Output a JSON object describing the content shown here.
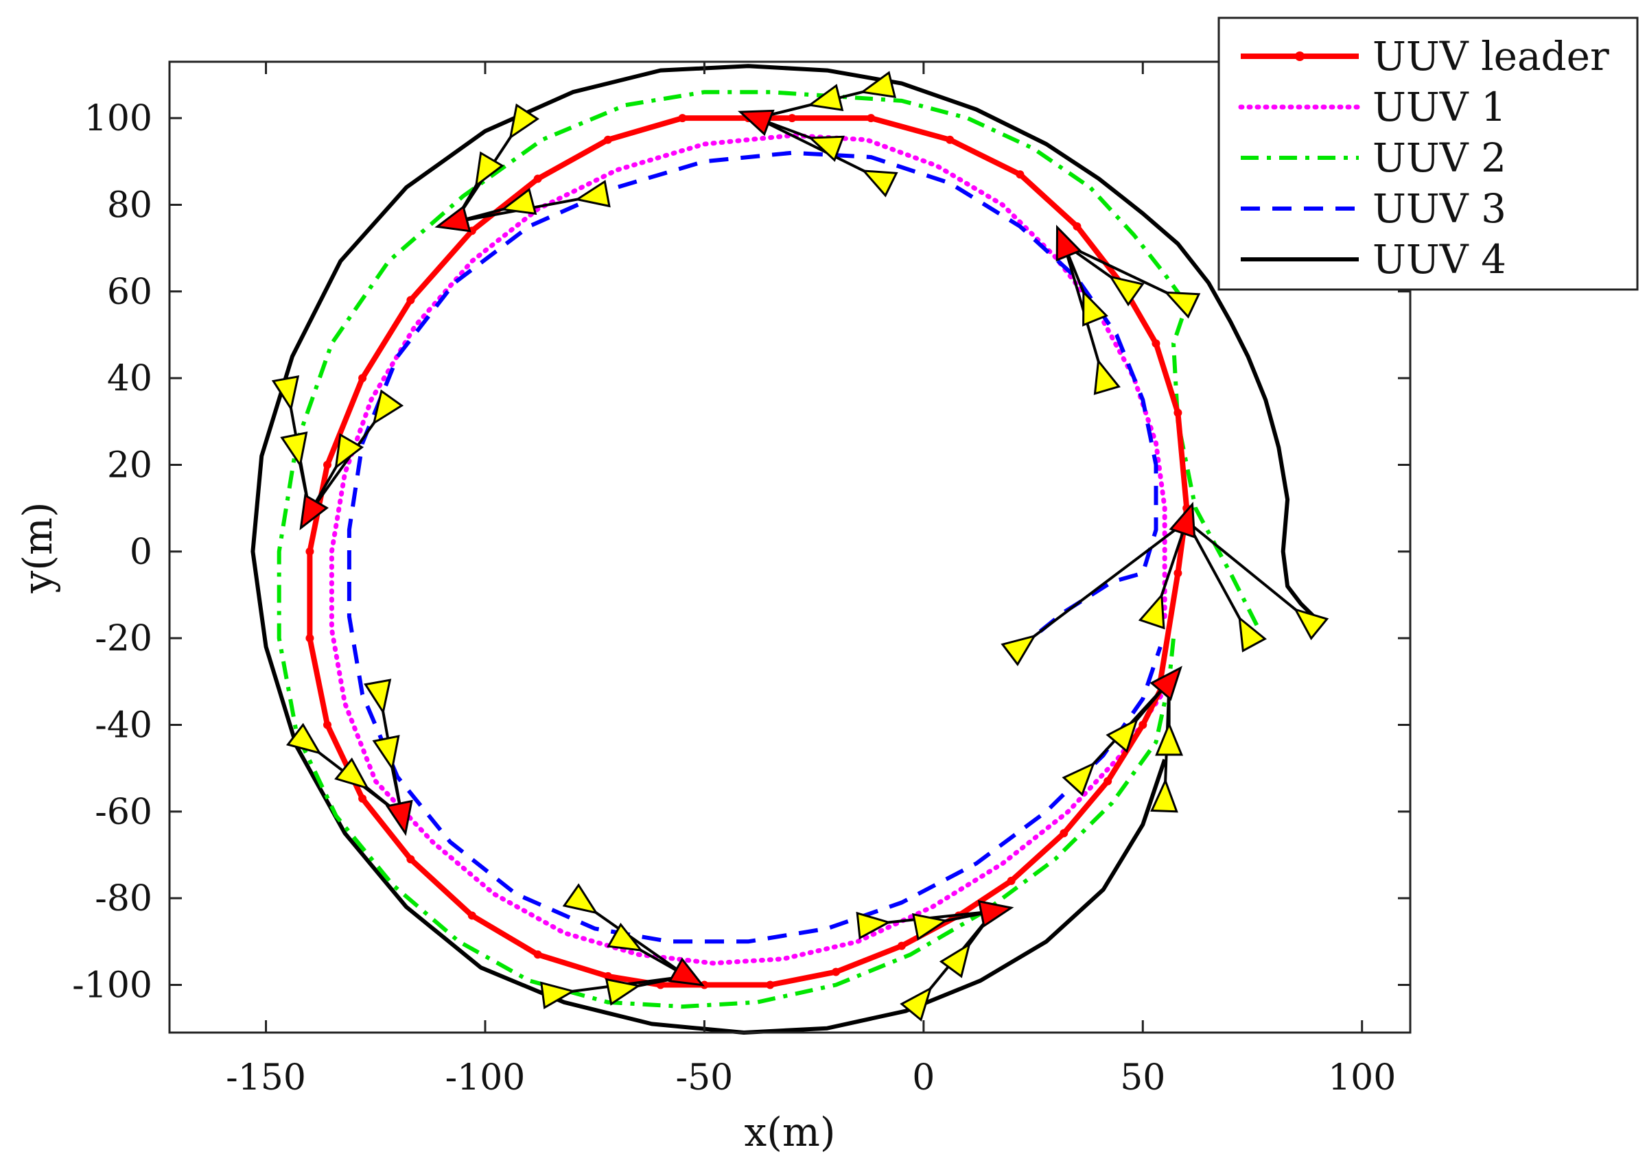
{
  "chart_data": {
    "type": "line",
    "title": "",
    "xlabel": "x(m)",
    "ylabel": "y(m)",
    "xlim": [
      -172,
      111
    ],
    "ylim": [
      -111,
      113
    ],
    "x_ticks": [
      -150,
      -100,
      -50,
      0,
      50,
      100
    ],
    "y_ticks": [
      -100,
      -80,
      -60,
      -40,
      -20,
      0,
      20,
      40,
      60,
      80,
      100
    ],
    "x_tick_labels": [
      "-150",
      "-100",
      "-50",
      "0",
      "50",
      "100"
    ],
    "y_tick_labels": [
      "-100",
      "-80",
      "-60",
      "-40",
      "-20",
      "0",
      "20",
      "40",
      "60",
      "80",
      "100"
    ],
    "legend_position": "top-right",
    "grid": false,
    "series": [
      {
        "name": "UUV leader",
        "color": "#ff0000",
        "style": "solid-dots",
        "x": [
          54,
          58,
          60,
          58,
          53,
          45,
          35,
          22,
          6,
          -12,
          -30,
          -40,
          -55,
          -72,
          -88,
          -103,
          -117,
          -128,
          -136,
          -140,
          -140,
          -136,
          -128,
          -117,
          -103,
          -88,
          -72,
          -60,
          -50,
          -35,
          -20,
          -5,
          8,
          20,
          32,
          42,
          50,
          55
        ],
        "y": [
          -30,
          -5,
          10,
          32,
          48,
          62,
          75,
          87,
          95,
          100,
          100,
          100,
          100,
          95,
          86,
          74,
          58,
          40,
          20,
          0,
          -20,
          -40,
          -57,
          -71,
          -84,
          -93,
          -98,
          -100,
          -100,
          -100,
          -97,
          -91,
          -84,
          -76,
          -65,
          -53,
          -40,
          -30
        ]
      },
      {
        "name": "UUV 1",
        "color": "#ff00ff",
        "style": "dotted",
        "x": [
          55,
          55,
          55,
          53,
          48,
          40,
          30,
          18,
          3,
          -13,
          -30,
          -50,
          -70,
          -88,
          -103,
          -116,
          -126,
          -132,
          -135,
          -135,
          -132,
          -125,
          -112,
          -98,
          -82,
          -65,
          -48,
          -32,
          -15,
          2,
          18,
          33,
          45,
          55
        ],
        "y": [
          -15,
          -5,
          10,
          25,
          40,
          55,
          68,
          80,
          89,
          95,
          96,
          94,
          88,
          79,
          67,
          52,
          35,
          18,
          0,
          -18,
          -35,
          -53,
          -67,
          -79,
          -88,
          -93,
          -95,
          -94,
          -90,
          -82,
          -72,
          -60,
          -47,
          -32
        ]
      },
      {
        "name": "UUV 2",
        "color": "#00e600",
        "style": "dashdot",
        "x": [
          76,
          70,
          62,
          58,
          57,
          60,
          55,
          48,
          38,
          25,
          10,
          -5,
          -20,
          -35,
          -50,
          -68,
          -87,
          -105,
          -122,
          -135,
          -143,
          -147,
          -147,
          -143,
          -134,
          -121,
          -106,
          -90,
          -72,
          -55,
          -38,
          -20,
          -3,
          14,
          30,
          43,
          53,
          56,
          57
        ],
        "y": [
          -17,
          -5,
          10,
          30,
          48,
          57,
          64,
          73,
          84,
          93,
          100,
          104,
          105,
          106,
          106,
          103,
          95,
          82,
          67,
          48,
          25,
          0,
          -20,
          -42,
          -61,
          -77,
          -90,
          -99,
          -104,
          -105,
          -104,
          -100,
          -93,
          -83,
          -71,
          -58,
          -44,
          -30,
          -20
        ]
      },
      {
        "name": "UUV 3",
        "color": "#0000ff",
        "style": "dashed",
        "x": [
          21,
          32,
          43,
          50,
          53,
          53,
          50,
          44,
          35,
          22,
          6,
          -12,
          -30,
          -50,
          -70,
          -90,
          -107,
          -120,
          -128,
          -131,
          -131,
          -128,
          -120,
          -108,
          -93,
          -75,
          -58,
          -40,
          -22,
          -5,
          12,
          28,
          41,
          50,
          54
        ],
        "y": [
          -23,
          -14,
          -7,
          -5,
          5,
          20,
          35,
          50,
          63,
          75,
          85,
          91,
          92,
          90,
          84,
          75,
          62,
          45,
          25,
          5,
          -15,
          -33,
          -52,
          -67,
          -79,
          -87,
          -90,
          -90,
          -87,
          -81,
          -72,
          -60,
          -47,
          -34,
          -22
        ]
      },
      {
        "name": "UUV 4",
        "color": "#000000",
        "style": "solid",
        "x": [
          90,
          86,
          83,
          82,
          83,
          81,
          78,
          74,
          70,
          65,
          58,
          50,
          40,
          28,
          12,
          -5,
          -22,
          -40,
          -60,
          -80,
          -100,
          -118,
          -133,
          -144,
          -151,
          -153,
          -150,
          -143,
          -132,
          -118,
          -101,
          -82,
          -62,
          -41,
          -22,
          -4,
          13,
          28,
          41,
          50,
          55
        ],
        "y": [
          -16,
          -12,
          -8,
          0,
          12,
          24,
          35,
          45,
          53,
          62,
          71,
          78,
          86,
          94,
          102,
          108,
          111,
          112,
          111,
          106,
          97,
          84,
          67,
          45,
          22,
          0,
          -22,
          -45,
          -65,
          -82,
          -96,
          -104,
          -109,
          -111,
          -110,
          -106,
          -99,
          -90,
          -78,
          -63,
          -48
        ]
      }
    ],
    "markers": [
      {
        "group": "top-left",
        "leader": {
          "x": -107,
          "y": 76
        },
        "followers": [
          {
            "x": -92,
            "y": 80
          },
          {
            "x": -75,
            "y": 82
          },
          {
            "x": -100,
            "y": 88
          },
          {
            "x": -92,
            "y": 99
          }
        ]
      },
      {
        "group": "top",
        "leader": {
          "x": -38,
          "y": 100
        },
        "followers": [
          {
            "x": -22,
            "y": 94
          },
          {
            "x": -10,
            "y": 86
          },
          {
            "x": -22,
            "y": 104
          },
          {
            "x": -10,
            "y": 107
          }
        ]
      },
      {
        "group": "top-right",
        "leader": {
          "x": 32,
          "y": 71
        },
        "followers": [
          {
            "x": 38,
            "y": 56
          },
          {
            "x": 41,
            "y": 40
          },
          {
            "x": 46,
            "y": 61
          },
          {
            "x": 59,
            "y": 58
          }
        ]
      },
      {
        "group": "right",
        "leader": {
          "x": 60,
          "y": 7
        },
        "followers": [
          {
            "x": 53,
            "y": -14
          },
          {
            "x": 22,
            "y": -22
          },
          {
            "x": 74,
            "y": -19
          },
          {
            "x": 88,
            "y": -16
          }
        ]
      },
      {
        "group": "left",
        "leader": {
          "x": -140,
          "y": 9
        },
        "followers": [
          {
            "x": -132,
            "y": 23
          },
          {
            "x": -123,
            "y": 33
          },
          {
            "x": -143,
            "y": 24
          },
          {
            "x": -145,
            "y": 37
          }
        ]
      },
      {
        "group": "bottom-left",
        "leader": {
          "x": -119,
          "y": -61
        },
        "followers": [
          {
            "x": -122,
            "y": -46
          },
          {
            "x": -124,
            "y": -33
          },
          {
            "x": -130,
            "y": -52
          },
          {
            "x": -141,
            "y": -44
          }
        ]
      },
      {
        "group": "bottom",
        "leader": {
          "x": -54,
          "y": -98
        },
        "followers": [
          {
            "x": -68,
            "y": -90
          },
          {
            "x": -78,
            "y": -81
          },
          {
            "x": -69,
            "y": -101
          },
          {
            "x": -84,
            "y": -102
          }
        ]
      },
      {
        "group": "bottom-right-1",
        "leader": {
          "x": 16,
          "y": -83
        },
        "followers": [
          {
            "x": 1,
            "y": -86
          },
          {
            "x": -12,
            "y": -86
          },
          {
            "x": 8,
            "y": -94
          },
          {
            "x": -1,
            "y": -104
          }
        ]
      },
      {
        "group": "bottom-right-2",
        "leader": {
          "x": 56,
          "y": -30
        },
        "followers": [
          {
            "x": 46,
            "y": -42
          },
          {
            "x": 36,
            "y": -52
          },
          {
            "x": 56,
            "y": -44
          },
          {
            "x": 55,
            "y": -57
          }
        ]
      }
    ]
  }
}
